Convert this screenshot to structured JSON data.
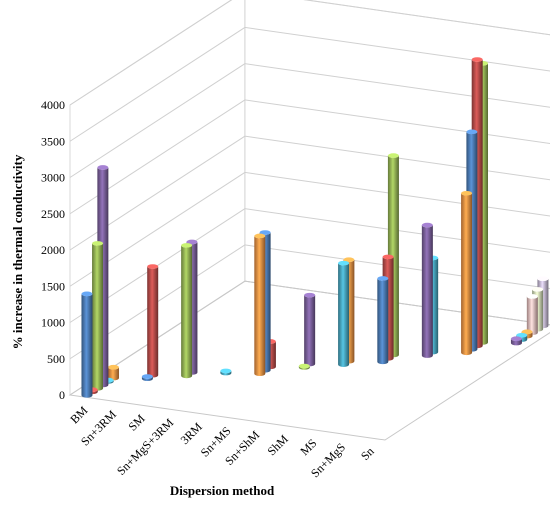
{
  "chart_data": {
    "type": "bar",
    "subtype": "3d-column",
    "title": "",
    "xlabel": "Dispersion method",
    "ylabel": "% increase in thermal conductivity",
    "ylim": [
      0,
      4000
    ],
    "yticks": [
      "0",
      "500",
      "1000",
      "1500",
      "2000",
      "2500",
      "3000",
      "3500",
      "4000"
    ],
    "categories": [
      "BM",
      "Sn+3RM",
      "SM",
      "Sn+MgS+3RM",
      "3RM",
      "Sn+MS",
      "Sn+ShM",
      "ShM",
      "MS",
      "Sn+MgS",
      "Sn"
    ],
    "grid": true,
    "legend": "none",
    "series_colors": [
      "#4f81bd",
      "#c0504d",
      "#9bbb59",
      "#8064a2",
      "#4bacc6",
      "#f79646",
      "#4f81bd",
      "#c0504d",
      "#9bbb59",
      "#8064a2",
      "#4bacc6",
      "#f79646",
      "#4f81bd",
      "#c0504d",
      "#9bbb59",
      "#8064a2",
      "#4bacc6",
      "#f79646",
      "#4f81bd",
      "#c0504d",
      "#9bbb59",
      "#8064a2",
      "#4bacc6",
      "#f79646",
      "#4f81bd",
      "#c0504d",
      "#9bbb59",
      "#8064a2",
      "#4bacc6",
      "#f79646",
      "#f2c5c4",
      "#d7e4bd",
      "#ccc1da"
    ],
    "bars": [
      {
        "category": "BM",
        "depth": 0,
        "value": 1400
      },
      {
        "category": "BM",
        "depth": 1,
        "value": 30
      },
      {
        "category": "BM",
        "depth": 2,
        "value": 2000
      },
      {
        "category": "BM",
        "depth": 3,
        "value": 3000
      },
      {
        "category": "BM",
        "depth": 4,
        "value": 20
      },
      {
        "category": "BM",
        "depth": 5,
        "value": 150
      },
      {
        "category": "Sn+3RM",
        "depth": 6,
        "value": 30
      },
      {
        "category": "Sn+3RM",
        "depth": 7,
        "value": 1500
      },
      {
        "category": "SM",
        "depth": 8,
        "value": 1800
      },
      {
        "category": "SM",
        "depth": 9,
        "value": 1800
      },
      {
        "category": "Sn+MgS+3RM",
        "depth": 10,
        "value": 30
      },
      {
        "category": "3RM",
        "depth": 11,
        "value": 1900
      },
      {
        "category": "3RM",
        "depth": 12,
        "value": 1900
      },
      {
        "category": "3RM",
        "depth": 13,
        "value": 350
      },
      {
        "category": "Sn+MS",
        "depth": 14,
        "value": 20
      },
      {
        "category": "Sn+MS",
        "depth": 15,
        "value": 950
      },
      {
        "category": "Sn+ShM",
        "depth": 16,
        "value": 1400
      },
      {
        "category": "Sn+ShM",
        "depth": 17,
        "value": 1400
      },
      {
        "category": "ShM",
        "depth": 18,
        "value": 1150
      },
      {
        "category": "ShM",
        "depth": 19,
        "value": 1400
      },
      {
        "category": "ShM",
        "depth": 20,
        "value": 2750
      },
      {
        "category": "MS",
        "depth": 21,
        "value": 1800
      },
      {
        "category": "MS",
        "depth": 22,
        "value": 1300
      },
      {
        "category": "Sn+MgS",
        "depth": 23,
        "value": 2200
      },
      {
        "category": "Sn+MgS",
        "depth": 24,
        "value": 3000
      },
      {
        "category": "Sn+MgS",
        "depth": 25,
        "value": 3950
      },
      {
        "category": "Sn+MgS",
        "depth": 26,
        "value": 3850
      },
      {
        "category": "Sn",
        "depth": 27,
        "value": 60
      },
      {
        "category": "Sn",
        "depth": 28,
        "value": 60
      },
      {
        "category": "Sn",
        "depth": 29,
        "value": 60
      },
      {
        "category": "Sn",
        "depth": 30,
        "value": 500
      },
      {
        "category": "Sn",
        "depth": 31,
        "value": 550
      },
      {
        "category": "Sn",
        "depth": 32,
        "value": 650
      }
    ]
  }
}
